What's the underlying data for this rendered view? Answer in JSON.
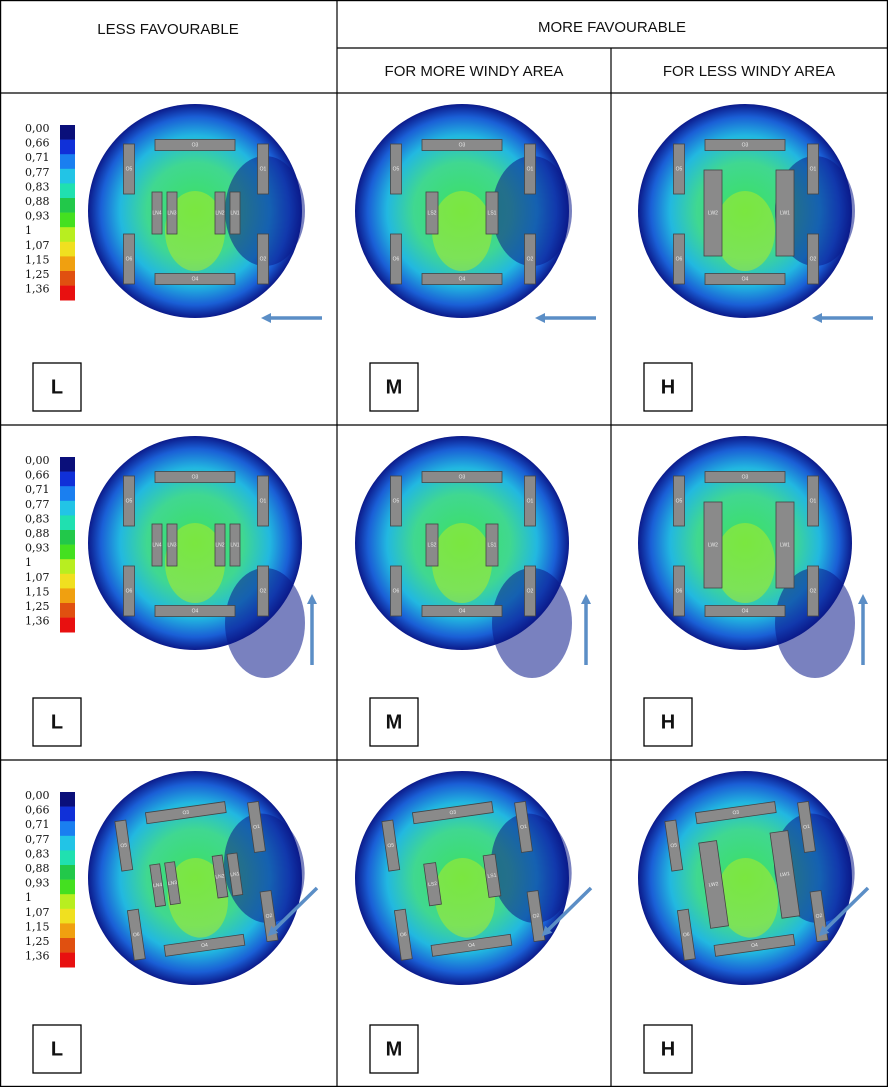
{
  "header": {
    "less": "LESS FAVOURABLE",
    "more": "MORE FAVOURABLE",
    "more_windy": "FOR MORE WINDY AREA",
    "less_windy": "FOR LESS WINDY AREA"
  },
  "legend": {
    "labels": [
      "0,00",
      "0,66",
      "0,71",
      "0,77",
      "0,83",
      "0,88",
      "0,93",
      "1",
      "1,07",
      "1,15",
      "1,25",
      "1,36"
    ],
    "colors": [
      "#0a0f7a",
      "#1030d8",
      "#1a7ff0",
      "#22c4e6",
      "#20e0b0",
      "#22c84a",
      "#44e020",
      "#b8ee20",
      "#f0e020",
      "#f0a010",
      "#e05010",
      "#e81010"
    ]
  },
  "rows": [
    {
      "cells": [
        {
          "label": "L",
          "buildings": [
            "O3",
            "O4",
            "O5",
            "O6",
            "O1",
            "O2",
            "LN4",
            "LN3",
            "LN2",
            "LN1"
          ]
        },
        {
          "label": "M",
          "buildings": [
            "O3",
            "O4",
            "O5",
            "O6",
            "O1",
            "O2",
            "LS2",
            "LS1"
          ]
        },
        {
          "label": "H",
          "buildings": [
            "O3",
            "O4",
            "O5",
            "O6",
            "O1",
            "O2",
            "LW2",
            "LW1"
          ]
        }
      ]
    },
    {
      "cells": [
        {
          "label": "L",
          "buildings": [
            "O3",
            "O4",
            "O5",
            "O6",
            "O1",
            "O2",
            "LN4",
            "LN3",
            "LN2",
            "LN1"
          ]
        },
        {
          "label": "M",
          "buildings": [
            "O3",
            "O4",
            "O5",
            "O6",
            "O1",
            "O2",
            "LS2",
            "LS1"
          ]
        },
        {
          "label": "H",
          "buildings": [
            "O3",
            "O4",
            "O5",
            "O6",
            "O1",
            "O2",
            "LW2",
            "LW1"
          ]
        }
      ]
    },
    {
      "cells": [
        {
          "label": "L",
          "buildings": [
            "O3",
            "O4",
            "O5",
            "O6",
            "O1",
            "O2",
            "LN4",
            "LN3",
            "LN2",
            "LN1"
          ]
        },
        {
          "label": "M",
          "buildings": [
            "O3",
            "O4",
            "O5",
            "O6",
            "O1",
            "O2",
            "LS2",
            "LS1"
          ]
        },
        {
          "label": "H",
          "buildings": [
            "O3",
            "O4",
            "O5",
            "O6",
            "O1",
            "O2",
            "LW2",
            "LW1"
          ]
        }
      ]
    }
  ]
}
